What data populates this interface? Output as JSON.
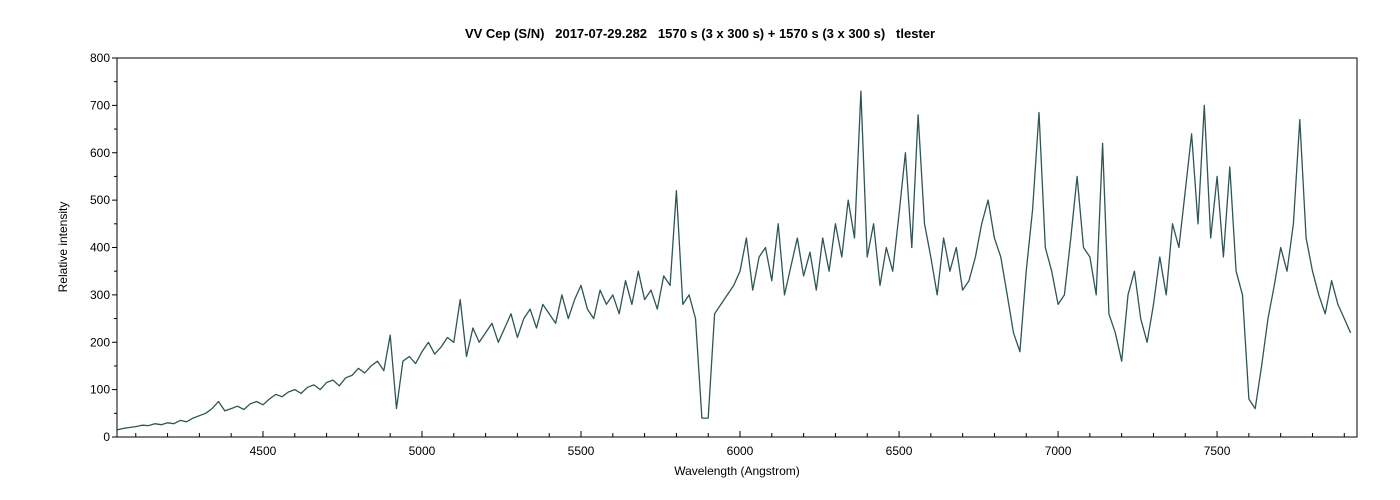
{
  "chart_data": {
    "type": "line",
    "title": "VV Cep (S/N)   2017-07-29.282   1570 s (3 x 300 s) + 1570 s (3 x 300 s)   tlester",
    "xlabel": "Wavelength (Angstrom)",
    "ylabel": "Relative intensity",
    "xlim": [
      4041,
      7940
    ],
    "ylim": [
      0,
      800
    ],
    "xticks": [
      4500,
      5000,
      5500,
      6000,
      6500,
      7000,
      7500
    ],
    "yticks": [
      0,
      100,
      200,
      300,
      400,
      500,
      600,
      700,
      800
    ],
    "grid": false,
    "line_color": "#2f5555",
    "series": [
      {
        "x_start": 4040,
        "x_step": 20,
        "values": [
          15,
          18,
          20,
          22,
          25,
          24,
          28,
          26,
          30,
          28,
          35,
          32,
          40,
          45,
          50,
          60,
          75,
          55,
          60,
          65,
          58,
          70,
          75,
          68,
          80,
          90,
          85,
          95,
          100,
          92,
          105,
          110,
          100,
          115,
          120,
          108,
          125,
          130,
          145,
          135,
          150,
          160,
          140,
          215,
          60,
          160,
          170,
          155,
          180,
          200,
          175,
          190,
          210,
          200,
          290,
          170,
          230,
          200,
          220,
          240,
          200,
          230,
          260,
          210,
          250,
          270,
          230,
          280,
          260,
          240,
          300,
          250,
          290,
          320,
          270,
          250,
          310,
          280,
          300,
          260,
          330,
          280,
          350,
          290,
          310,
          270,
          340,
          320,
          520,
          280,
          300,
          250,
          40,
          40,
          260,
          280,
          300,
          320,
          350,
          420,
          310,
          380,
          400,
          330,
          450,
          300,
          360,
          420,
          340,
          390,
          310,
          420,
          350,
          450,
          380,
          500,
          420,
          730,
          380,
          450,
          320,
          400,
          350,
          470,
          600,
          400,
          680,
          450,
          380,
          300,
          420,
          350,
          400,
          310,
          330,
          380,
          450,
          500,
          420,
          380,
          300,
          220,
          180,
          350,
          480,
          685,
          400,
          350,
          280,
          300,
          420,
          550,
          400,
          380,
          300,
          620,
          260,
          220,
          160,
          300,
          350,
          250,
          200,
          280,
          380,
          300,
          450,
          400,
          520,
          640,
          450,
          700,
          420,
          550,
          380,
          570,
          350,
          300,
          80,
          60,
          150,
          250,
          320,
          400,
          350,
          450,
          670,
          420,
          350,
          300,
          260,
          330,
          280,
          250,
          220
        ]
      }
    ]
  }
}
